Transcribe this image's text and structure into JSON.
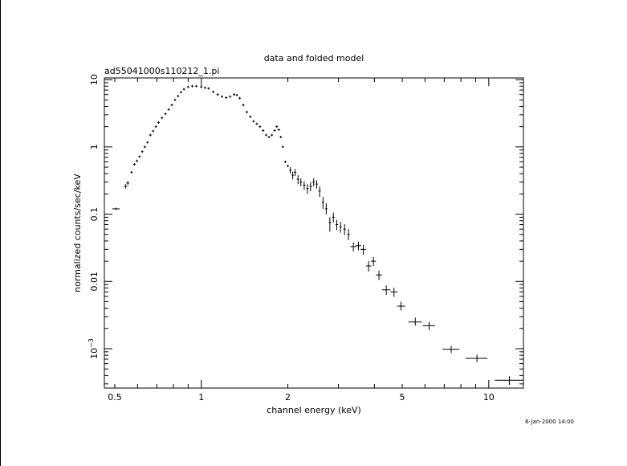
{
  "chart_data": {
    "type": "scatter",
    "title": "data and folded model",
    "subtitle": "ad55041000s110212_1.pi",
    "xlabel": "channel energy (keV)",
    "ylabel": "normalized counts/sec/keV",
    "timestamp": "6-Jan-2000 14:00",
    "x_scale": "log",
    "y_scale": "log",
    "xlim": [
      0.46,
      13.2
    ],
    "ylim": [
      0.00026,
      10.6
    ],
    "x_tick_labels": [
      {
        "value": 0.5,
        "label": "0.5"
      },
      {
        "value": 1,
        "label": "1"
      },
      {
        "value": 2,
        "label": "2"
      },
      {
        "value": 5,
        "label": "5"
      },
      {
        "value": 10,
        "label": "10"
      }
    ],
    "y_tick_labels": [
      {
        "value": 10,
        "label": "10"
      },
      {
        "value": 1,
        "label": "1"
      },
      {
        "value": 0.1,
        "label": "0.1"
      },
      {
        "value": 0.01,
        "label": "0.01"
      },
      {
        "value": 0.001,
        "label_base": "10",
        "label_exp": "−3"
      }
    ],
    "grid": false,
    "series": [
      {
        "points": [
          {
            "x": 0.505,
            "xlo": 0.49,
            "xhi": 0.52,
            "y": 0.12
          },
          {
            "x": 0.545,
            "xlo": 0.538,
            "xhi": 0.552,
            "y": 0.26,
            "ylo": 0.24,
            "yhi": 0.28
          },
          {
            "x": 0.555,
            "xlo": 0.548,
            "xhi": 0.562,
            "y": 0.29,
            "ylo": 0.27,
            "yhi": 0.31
          },
          {
            "x": 0.572,
            "y": 0.42
          },
          {
            "x": 0.585,
            "y": 0.55
          },
          {
            "x": 0.597,
            "y": 0.62
          },
          {
            "x": 0.61,
            "y": 0.72
          },
          {
            "x": 0.623,
            "y": 0.85
          },
          {
            "x": 0.636,
            "y": 1.0
          },
          {
            "x": 0.65,
            "y": 1.17
          },
          {
            "x": 0.665,
            "y": 1.5
          },
          {
            "x": 0.68,
            "y": 1.72
          },
          {
            "x": 0.695,
            "y": 2.0
          },
          {
            "x": 0.71,
            "y": 2.3
          },
          {
            "x": 0.73,
            "y": 2.7
          },
          {
            "x": 0.75,
            "y": 3.1
          },
          {
            "x": 0.77,
            "y": 3.6
          },
          {
            "x": 0.79,
            "y": 4.2
          },
          {
            "x": 0.81,
            "y": 5.0
          },
          {
            "x": 0.83,
            "y": 5.7
          },
          {
            "x": 0.85,
            "y": 6.5
          },
          {
            "x": 0.87,
            "y": 7.2
          },
          {
            "x": 0.9,
            "y": 7.8
          },
          {
            "x": 0.93,
            "y": 8.0
          },
          {
            "x": 0.96,
            "y": 8.0
          },
          {
            "x": 1.0,
            "y": 7.8
          },
          {
            "x": 1.03,
            "y": 7.6
          },
          {
            "x": 1.06,
            "y": 7.4
          },
          {
            "x": 1.1,
            "y": 6.6
          },
          {
            "x": 1.14,
            "y": 6.0
          },
          {
            "x": 1.18,
            "y": 5.6
          },
          {
            "x": 1.22,
            "y": 5.4
          },
          {
            "x": 1.26,
            "y": 5.6
          },
          {
            "x": 1.3,
            "y": 6.0
          },
          {
            "x": 1.33,
            "y": 5.9
          },
          {
            "x": 1.36,
            "y": 5.3
          },
          {
            "x": 1.4,
            "y": 4.2
          },
          {
            "x": 1.44,
            "y": 3.3
          },
          {
            "x": 1.48,
            "y": 2.8
          },
          {
            "x": 1.52,
            "y": 2.4
          },
          {
            "x": 1.56,
            "y": 2.2
          },
          {
            "x": 1.6,
            "y": 2.0
          },
          {
            "x": 1.64,
            "y": 1.75
          },
          {
            "x": 1.68,
            "y": 1.5
          },
          {
            "x": 1.72,
            "y": 1.4
          },
          {
            "x": 1.76,
            "y": 1.5
          },
          {
            "x": 1.8,
            "y": 1.75
          },
          {
            "x": 1.83,
            "y": 2.0
          },
          {
            "x": 1.86,
            "y": 1.8
          },
          {
            "x": 1.89,
            "y": 1.4
          },
          {
            "x": 1.92,
            "y": 1.0
          },
          {
            "x": 1.96,
            "y": 0.6
          },
          {
            "x": 2.0,
            "y": 0.52
          },
          {
            "x": 2.04,
            "y": 0.45,
            "ylo": 0.4,
            "yhi": 0.5
          },
          {
            "x": 2.08,
            "y": 0.38,
            "ylo": 0.33,
            "yhi": 0.43
          },
          {
            "x": 2.12,
            "y": 0.42,
            "ylo": 0.37,
            "yhi": 0.47
          },
          {
            "x": 2.17,
            "y": 0.33,
            "ylo": 0.28,
            "yhi": 0.38
          },
          {
            "x": 2.22,
            "y": 0.3,
            "ylo": 0.26,
            "yhi": 0.34
          },
          {
            "x": 2.28,
            "y": 0.27,
            "ylo": 0.23,
            "yhi": 0.31
          },
          {
            "x": 2.34,
            "y": 0.24,
            "ylo": 0.2,
            "yhi": 0.28
          },
          {
            "x": 2.4,
            "y": 0.26,
            "ylo": 0.22,
            "yhi": 0.3
          },
          {
            "x": 2.46,
            "y": 0.3,
            "ylo": 0.26,
            "yhi": 0.34
          },
          {
            "x": 2.52,
            "y": 0.28,
            "ylo": 0.24,
            "yhi": 0.32
          },
          {
            "x": 2.58,
            "y": 0.22,
            "ylo": 0.18,
            "yhi": 0.26
          },
          {
            "x": 2.65,
            "y": 0.15,
            "ylo": 0.12,
            "yhi": 0.18
          },
          {
            "x": 2.72,
            "y": 0.12,
            "ylo": 0.1,
            "yhi": 0.145
          },
          {
            "x": 2.8,
            "y": 0.075,
            "ylo": 0.055,
            "yhi": 0.09
          },
          {
            "x": 2.88,
            "y": 0.09,
            "ylo": 0.075,
            "yhi": 0.105
          },
          {
            "x": 2.96,
            "y": 0.07,
            "ylo": 0.058,
            "yhi": 0.082
          },
          {
            "x": 3.05,
            "y": 0.065,
            "ylo": 0.053,
            "yhi": 0.077
          },
          {
            "x": 3.15,
            "y": 0.06,
            "ylo": 0.049,
            "yhi": 0.071
          },
          {
            "x": 3.25,
            "y": 0.05,
            "ylo": 0.041,
            "yhi": 0.06
          },
          {
            "x": 3.38,
            "y": 0.033,
            "xlo": 3.3,
            "xhi": 3.46,
            "ylo": 0.028,
            "yhi": 0.038
          },
          {
            "x": 3.52,
            "y": 0.034,
            "xlo": 3.44,
            "xhi": 3.6,
            "ylo": 0.029,
            "yhi": 0.039
          },
          {
            "x": 3.66,
            "y": 0.03,
            "xlo": 3.58,
            "xhi": 3.74,
            "ylo": 0.025,
            "yhi": 0.035
          },
          {
            "x": 3.82,
            "y": 0.017,
            "xlo": 3.74,
            "xhi": 3.9,
            "ylo": 0.014,
            "yhi": 0.02
          },
          {
            "x": 3.97,
            "y": 0.02,
            "xlo": 3.89,
            "xhi": 4.05,
            "ylo": 0.017,
            "yhi": 0.023
          },
          {
            "x": 4.15,
            "y": 0.0125,
            "xlo": 4.05,
            "xhi": 4.25,
            "ylo": 0.0105,
            "yhi": 0.0145
          },
          {
            "x": 4.4,
            "y": 0.0075,
            "xlo": 4.25,
            "xhi": 4.55,
            "ylo": 0.0063,
            "yhi": 0.0087
          },
          {
            "x": 4.68,
            "y": 0.007,
            "xlo": 4.55,
            "xhi": 4.82,
            "ylo": 0.0059,
            "yhi": 0.0081
          },
          {
            "x": 4.95,
            "y": 0.0043,
            "xlo": 4.8,
            "xhi": 5.12,
            "ylo": 0.0037,
            "yhi": 0.005
          },
          {
            "x": 5.55,
            "y": 0.0025,
            "xlo": 5.25,
            "xhi": 5.85,
            "ylo": 0.0022,
            "yhi": 0.0029
          },
          {
            "x": 6.2,
            "y": 0.0022,
            "xlo": 5.9,
            "xhi": 6.5,
            "ylo": 0.0019,
            "yhi": 0.0025
          },
          {
            "x": 7.4,
            "y": 0.00098,
            "xlo": 6.9,
            "xhi": 7.9,
            "ylo": 0.00086,
            "yhi": 0.0011
          },
          {
            "x": 9.1,
            "y": 0.00072,
            "xlo": 8.3,
            "xhi": 9.9,
            "ylo": 0.00063,
            "yhi": 0.00082
          },
          {
            "x": 11.8,
            "y": 0.00034,
            "xlo": 10.5,
            "xhi": 13.2,
            "ylo": 0.00029,
            "yhi": 0.00039
          }
        ]
      }
    ]
  }
}
